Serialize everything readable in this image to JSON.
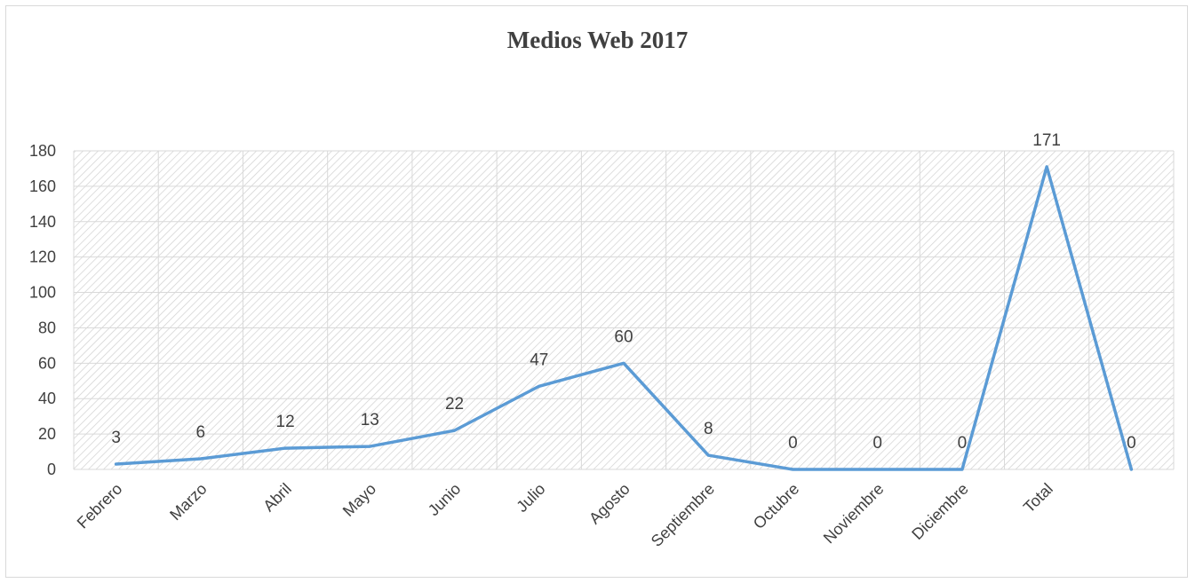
{
  "chart_data": {
    "type": "line",
    "title": "Medios Web 2017",
    "xlabel": "",
    "ylabel": "",
    "categories": [
      "Febrero",
      "Marzo",
      "Abril",
      "Mayo",
      "Junio",
      "Julio",
      "Agosto",
      "Septiembre",
      "Octubre",
      "Noviembre",
      "Diciembre",
      "Total",
      ""
    ],
    "series": [
      {
        "values": [
          3,
          6,
          12,
          13,
          22,
          47,
          60,
          8,
          0,
          0,
          0,
          171,
          0
        ]
      }
    ],
    "data_labels": [
      "3",
      "6",
      "12",
      "13",
      "22",
      "47",
      "60",
      "8",
      "0",
      "0",
      "0",
      "171",
      "0"
    ],
    "ylim": [
      0,
      180
    ],
    "yticks": [
      0,
      20,
      40,
      60,
      80,
      100,
      120,
      140,
      160,
      180
    ],
    "grid": true,
    "line_color": "#5b9bd5",
    "grid_color": "#d9d9d9"
  }
}
